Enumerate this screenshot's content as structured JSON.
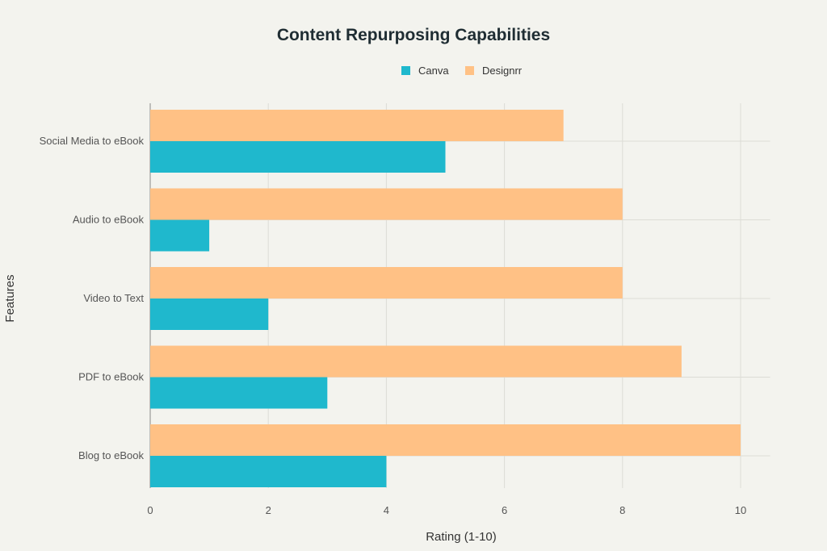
{
  "chart_data": {
    "type": "bar",
    "orientation": "horizontal",
    "title": "Content Repurposing Capabilities",
    "xlabel": "Rating (1-10)",
    "ylabel": "Features",
    "categories": [
      "Social Media to eBook",
      "Audio to eBook",
      "Video to Text",
      "PDF to eBook",
      "Blog to eBook"
    ],
    "series": [
      {
        "name": "Canva",
        "color": "#1FB8CD",
        "values": [
          5,
          1,
          2,
          3,
          4
        ]
      },
      {
        "name": "Designrr",
        "color": "#FFC185",
        "values": [
          7,
          8,
          8,
          9,
          10
        ]
      }
    ],
    "xlim": [
      0,
      10.5
    ],
    "xticks": [
      "0",
      "2",
      "4",
      "6",
      "8",
      "10"
    ],
    "grid": true,
    "legend": "top-center"
  }
}
